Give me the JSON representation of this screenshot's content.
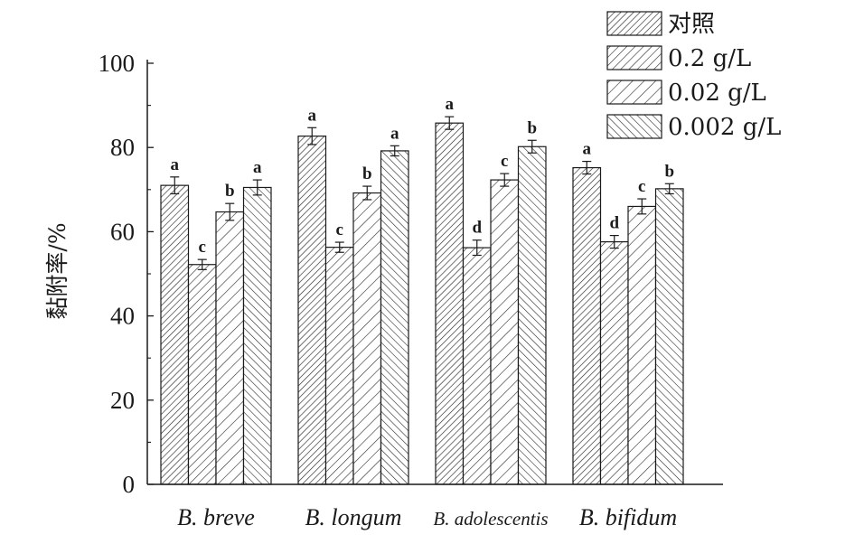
{
  "chart_data": {
    "type": "bar",
    "title": "",
    "xlabel": "",
    "ylabel": "黏附率/%",
    "ylim": [
      0,
      100
    ],
    "yticks": [
      0,
      20,
      40,
      60,
      80,
      100
    ],
    "categories": [
      "B. breve",
      "B. longum",
      "B. adolescentis",
      "B. bifidum"
    ],
    "legend_position": "top-right",
    "grid": false,
    "series": [
      {
        "name": "对照",
        "values": [
          71.0,
          82.7,
          85.8,
          75.2
        ],
        "errors": [
          2.0,
          2.0,
          1.5,
          1.5
        ],
        "labels": [
          "a",
          "a",
          "a",
          "a"
        ],
        "pattern": "dense-forward-hatch"
      },
      {
        "name": "0.2 g/L",
        "values": [
          52.2,
          56.3,
          56.2,
          57.6
        ],
        "errors": [
          1.2,
          1.2,
          1.8,
          1.5
        ],
        "labels": [
          "c",
          "c",
          "d",
          "d"
        ],
        "pattern": "forward-hatch"
      },
      {
        "name": "0.02 g/L",
        "values": [
          64.7,
          69.2,
          72.3,
          66.0
        ],
        "errors": [
          2.0,
          1.6,
          1.5,
          1.8
        ],
        "labels": [
          "b",
          "b",
          "c",
          "c"
        ],
        "pattern": "sparse-forward-hatch"
      },
      {
        "name": "0.002 g/L",
        "values": [
          70.5,
          79.2,
          80.2,
          70.2
        ],
        "errors": [
          1.8,
          1.2,
          1.5,
          1.2
        ],
        "labels": [
          "a",
          "a",
          "b",
          "b"
        ],
        "pattern": "backward-hatch"
      }
    ]
  }
}
